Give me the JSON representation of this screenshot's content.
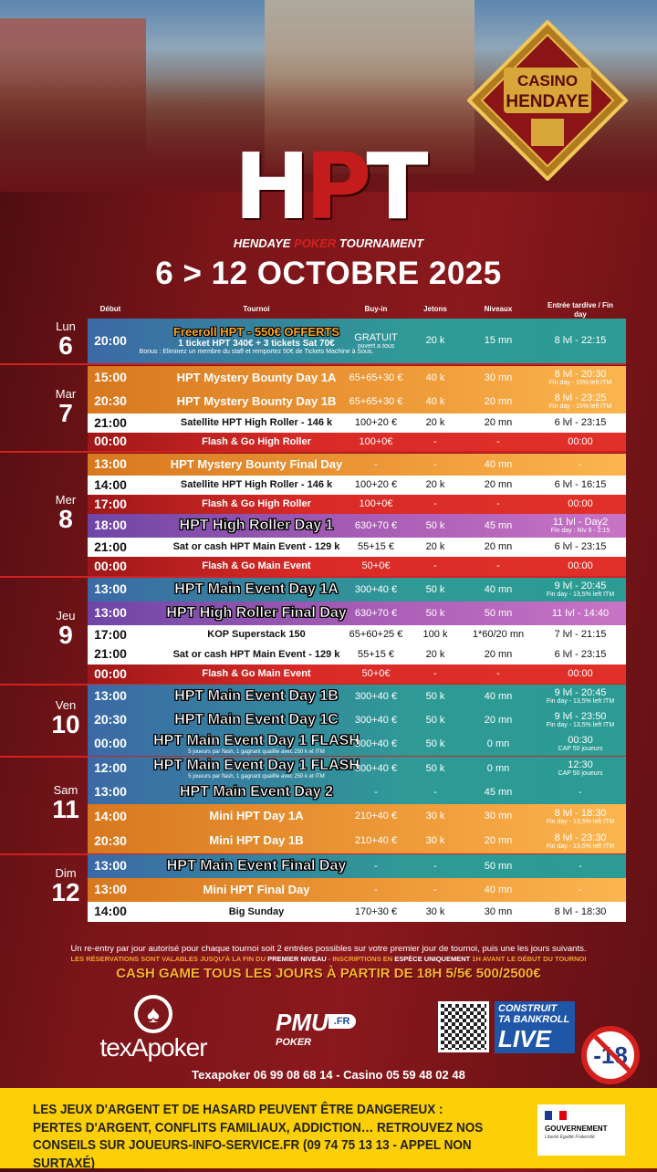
{
  "header": {
    "casino_logo": {
      "line1": "CASINO",
      "line2": "HENDAYE"
    },
    "logo_letters": {
      "h": "H",
      "p": "P",
      "t": "T"
    },
    "subtitle": {
      "a": "HENDAYE ",
      "b": "POKER",
      "c": " TOURNAMENT"
    },
    "dates": "6 > 12 OCTOBRE 2025"
  },
  "columns": [
    "Début",
    "Tournoi",
    "Buy-in",
    "Jetons",
    "Niveaux",
    "Entrée tardive / Fin day"
  ],
  "colors": {
    "blue": "#3c69a6",
    "teal": "#2b9b93",
    "orange": "#f2a13e",
    "red": "#d92a27",
    "purple": "#a65cb4",
    "white": "#ffffff"
  },
  "days": [
    {
      "name": "Lun",
      "num": "6",
      "rows": [
        {
          "time": "20:00",
          "name": "Freeroll HPT - 550€ OFFERTS",
          "line2": "1 ticket HPT 340€ + 3 tickets Sat 70€",
          "note": "Bonus : Eliminez un membre du staff et remportez 50€ de Tickets Machine à Sous.",
          "buyin": "GRATUIT",
          "buyin_sub": "ouvert a tous",
          "jetons": "20 k",
          "niveaux": "15 mn",
          "late": "8 lvl - 22:15",
          "style": "blue"
        }
      ]
    },
    {
      "name": "Mar",
      "num": "7",
      "rows": [
        {
          "time": "15:00",
          "name": "HPT Mystery Bounty Day 1A",
          "buyin": "65+65+30 €",
          "jetons": "40 k",
          "niveaux": "30 mn",
          "late": "8 lvl - 20:30",
          "late_sub": "Fin day - 15% left ITM",
          "style": "orange"
        },
        {
          "time": "20:30",
          "name": "HPT Mystery Bounty Day 1B",
          "buyin": "65+65+30 €",
          "jetons": "40 k",
          "niveaux": "20 mn",
          "late": "8 lvl - 23:25",
          "late_sub": "Fin day - 15% left ITM",
          "style": "orange"
        },
        {
          "time": "21:00",
          "name": "Satellite HPT High Roller - 146 k",
          "buyin": "100+20 €",
          "jetons": "20 k",
          "niveaux": "20 mn",
          "late": "6 lvl - 23:15",
          "style": "white"
        },
        {
          "time": "00:00",
          "name": "Flash & Go High Roller",
          "buyin": "100+0€",
          "jetons": "-",
          "niveaux": "-",
          "late": "00:00",
          "style": "red"
        }
      ]
    },
    {
      "name": "Mer",
      "num": "8",
      "rows": [
        {
          "time": "13:00",
          "name": "HPT Mystery Bounty Final Day",
          "buyin": "-",
          "jetons": "-",
          "niveaux": "40 mn",
          "late": "-",
          "style": "orange"
        },
        {
          "time": "14:00",
          "name": "Satellite HPT High Roller - 146 k",
          "buyin": "100+20 €",
          "jetons": "20 k",
          "niveaux": "20 mn",
          "late": "6 lvl - 16:15",
          "style": "white"
        },
        {
          "time": "17:00",
          "name": "Flash & Go High Roller",
          "buyin": "100+0€",
          "jetons": "-",
          "niveaux": "-",
          "late": "00:00",
          "style": "red"
        },
        {
          "time": "18:00",
          "name": "HPT High Roller Day 1",
          "buyin": "630+70 €",
          "jetons": "50 k",
          "niveaux": "45 mn",
          "late": "11 lvl - Day2",
          "late_sub": "Fin day : Niv 9 - 2:15",
          "style": "purple",
          "big": true
        },
        {
          "time": "21:00",
          "name": "Sat or cash HPT Main Event - 129 k",
          "buyin": "55+15 €",
          "jetons": "20 k",
          "niveaux": "20 mn",
          "late": "6 lvl - 23:15",
          "style": "white"
        },
        {
          "time": "00:00",
          "name": "Flash & Go Main Event",
          "buyin": "50+0€",
          "jetons": "-",
          "niveaux": "-",
          "late": "00:00",
          "style": "red"
        }
      ]
    },
    {
      "name": "Jeu",
      "num": "9",
      "rows": [
        {
          "time": "13:00",
          "name": "HPT Main Event Day 1A",
          "buyin": "300+40 €",
          "jetons": "50 k",
          "niveaux": "40 mn",
          "late": "9 lvl - 20:45",
          "late_sub": "Fin day - 13,5% left ITM",
          "style": "blue",
          "big": true
        },
        {
          "time": "13:00",
          "name": "HPT High Roller Final Day",
          "buyin": "630+70 €",
          "jetons": "50 k",
          "niveaux": "50 mn",
          "late": "11 lvl - 14:40",
          "style": "purple",
          "big": true
        },
        {
          "time": "17:00",
          "name": "KOP Superstack 150",
          "buyin": "65+60+25 €",
          "jetons": "100 k",
          "niveaux": "1*60/20 mn",
          "late": "7 lvl - 21:15",
          "style": "white"
        },
        {
          "time": "21:00",
          "name": "Sat or cash HPT Main Event - 129 k",
          "buyin": "55+15 €",
          "jetons": "20 k",
          "niveaux": "20 mn",
          "late": "6 lvl - 23:15",
          "style": "white"
        },
        {
          "time": "00:00",
          "name": "Flash & Go Main Event",
          "buyin": "50+0€",
          "jetons": "-",
          "niveaux": "-",
          "late": "00:00",
          "style": "red"
        }
      ]
    },
    {
      "name": "Ven",
      "num": "10",
      "rows": [
        {
          "time": "13:00",
          "name": "HPT Main Event Day 1B",
          "buyin": "300+40 €",
          "jetons": "50 k",
          "niveaux": "40 mn",
          "late": "9 lvl - 20:45",
          "late_sub": "Fin day - 13,5% left ITM",
          "style": "blue",
          "big": true
        },
        {
          "time": "20:30",
          "name": "HPT Main Event Day 1C",
          "buyin": "300+40 €",
          "jetons": "50 k",
          "niveaux": "20 mn",
          "late": "9 lvl - 23:50",
          "late_sub": "Fin day - 13,5% left ITM",
          "style": "blue",
          "big": true
        },
        {
          "time": "00:00",
          "name": "HPT Main Event Day 1 FLASH",
          "note": "5 joueurs par flash, 1 gagnant qualifie avec 250 k et ITM",
          "buyin": "300+40 €",
          "jetons": "50 k",
          "niveaux": "0 mn",
          "late": "00:30",
          "late_sub": "CAP 50 joueurs",
          "style": "blue",
          "big": true
        }
      ]
    },
    {
      "name": "Sam",
      "num": "11",
      "rows": [
        {
          "time": "12:00",
          "name": "HPT Main Event Day 1 FLASH",
          "note": "5 joueurs par flash, 1 gagnant qualifie avec 250 k et ITM",
          "buyin": "300+40 €",
          "jetons": "50 k",
          "niveaux": "0 mn",
          "late": "12:30",
          "late_sub": "CAP 50 joueurs",
          "style": "blue",
          "big": true
        },
        {
          "time": "13:00",
          "name": "HPT Main Event Day 2",
          "buyin": "-",
          "jetons": "-",
          "niveaux": "45 mn",
          "late": "-",
          "style": "blue",
          "big": true
        },
        {
          "time": "14:00",
          "name": "Mini HPT Day 1A",
          "buyin": "210+40 €",
          "jetons": "30 k",
          "niveaux": "30 mn",
          "late": "8 lvl - 18:30",
          "late_sub": "Fin day - 13,5% left ITM",
          "style": "orange"
        },
        {
          "time": "20:30",
          "name": "Mini HPT Day 1B",
          "buyin": "210+40 €",
          "jetons": "30 k",
          "niveaux": "20 mn",
          "late": "8 lvl - 23:30",
          "late_sub": "Fin day - 13,5% left ITM",
          "style": "orange"
        }
      ]
    },
    {
      "name": "Dim",
      "num": "12",
      "rows": [
        {
          "time": "13:00",
          "name": "HPT Main Event Final Day",
          "buyin": "-",
          "jetons": "-",
          "niveaux": "50 mn",
          "late": "-",
          "style": "blue",
          "big": true
        },
        {
          "time": "13:00",
          "name": "Mini HPT Final Day",
          "buyin": "-",
          "jetons": "-",
          "niveaux": "40 mn",
          "late": "-",
          "style": "orange"
        },
        {
          "time": "14:00",
          "name": "Big Sunday",
          "buyin": "170+30 €",
          "jetons": "30 k",
          "niveaux": "30 mn",
          "late": "8 lvl - 18:30",
          "style": "white"
        }
      ]
    }
  ],
  "footer": {
    "note1": "Un re-entry par jour autorisé pour chaque tournoi soit 2 entrées possibles sur votre premier jour de tournoi, puis une les jours suivants.",
    "note2": {
      "a": "LES RÉSERVATIONS SONT VALABLES JUSQU'À LA FIN DU ",
      "b": "PREMIER NIVEAU",
      "c": " - INSCRIPTIONS EN ",
      "d": "ESPÈCE UNIQUEMENT",
      "e": " 1H AVANT LE DÉBUT DU TOURNOI"
    },
    "cash_game": "CASH GAME TOUS LES JOURS À PARTIR DE 18H 5/5€ 500/2500€",
    "texapoker": "texApoker",
    "pmu": {
      "brand": "PMU",
      "fr": ".FR",
      "poker": "POKER"
    },
    "live": {
      "l1": "CONSTRUIT",
      "l2": "TA BANKROLL",
      "l3": "LIVE"
    },
    "age": "-18",
    "contact": "Texapoker 06 99 08 68 14 - Casino 05 59 48 02 48",
    "warning": "LES JEUX D'ARGENT ET DE HASARD PEUVENT ÊTRE DANGEREUX :  PERTES D'ARGENT, CONFLITS FAMILIAUX, ADDICTION… RETROUVEZ NOS CONSEILS SUR JOUEURS-INFO-SERVICE.FR  (09 74 75 13 13 - APPEL NON SURTAXÉ)",
    "gov": {
      "name": "GOUVERNEMENT",
      "motto": "Liberté Égalité Fraternité"
    }
  }
}
